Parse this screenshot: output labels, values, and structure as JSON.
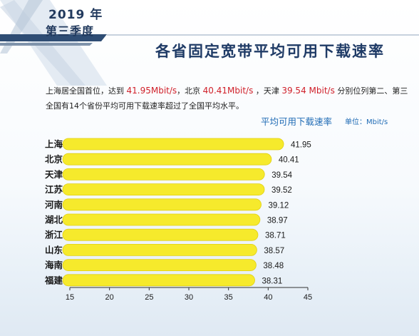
{
  "header": {
    "year": "2019 年",
    "quarter": "第三季度",
    "title": "各省固定宽带平均可用下载速率"
  },
  "description": {
    "line1": {
      "t1": "上海居全国首位，达到 ",
      "v1": "41.95Mbit/s",
      "t2": "，北京 ",
      "v2": "40.41Mbit/s",
      "t3": " ，天津 ",
      "v3": "39.54 Mbit/s",
      "t4": " 分别位列第二、第三"
    },
    "line2": "全国有14个省份平均可用下载速率超过了全国平均水平。"
  },
  "chart_data": {
    "type": "bar",
    "orientation": "horizontal",
    "title": "平均可用下载速率",
    "unit": "单位：Mbit/s",
    "categories": [
      "上海",
      "北京",
      "天津",
      "江苏",
      "河南",
      "湖北",
      "浙江",
      "山东",
      "海南",
      "福建"
    ],
    "values": [
      41.95,
      40.41,
      39.54,
      39.52,
      39.12,
      38.97,
      38.71,
      38.57,
      38.48,
      38.31
    ],
    "value_labels": [
      "41.95",
      "40.41",
      "39.54",
      "39.52",
      "39.12",
      "38.97",
      "38.71",
      "38.57",
      "38.48",
      "38.31"
    ],
    "xlim": [
      15,
      45
    ],
    "xticks": [
      15,
      20,
      25,
      30,
      35,
      40,
      45
    ],
    "grid": false,
    "colors": {
      "bar": "#f6ea2c",
      "bar_stroke": "#e0cf12",
      "axis": "#333333",
      "text": "#1a1a1a"
    }
  }
}
